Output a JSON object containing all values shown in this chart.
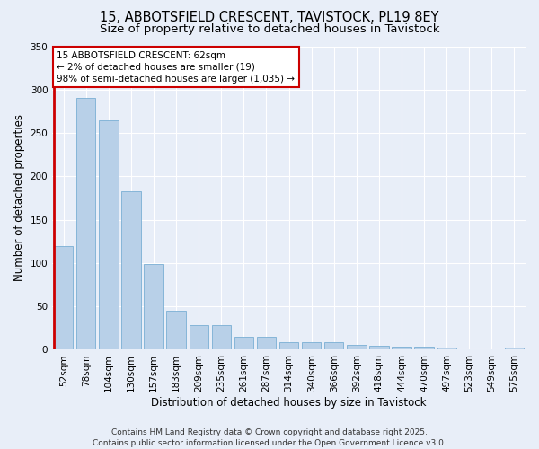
{
  "title_line1": "15, ABBOTSFIELD CRESCENT, TAVISTOCK, PL19 8EY",
  "title_line2": "Size of property relative to detached houses in Tavistock",
  "xlabel": "Distribution of detached houses by size in Tavistock",
  "ylabel": "Number of detached properties",
  "bar_color": "#b8d0e8",
  "bar_edge_color": "#7aafd4",
  "highlight_color": "#cc0000",
  "categories": [
    "52sqm",
    "78sqm",
    "104sqm",
    "130sqm",
    "157sqm",
    "183sqm",
    "209sqm",
    "235sqm",
    "261sqm",
    "287sqm",
    "314sqm",
    "340sqm",
    "366sqm",
    "392sqm",
    "418sqm",
    "444sqm",
    "470sqm",
    "497sqm",
    "523sqm",
    "549sqm",
    "575sqm"
  ],
  "values": [
    120,
    290,
    265,
    183,
    99,
    45,
    28,
    28,
    15,
    15,
    9,
    9,
    9,
    6,
    5,
    4,
    4,
    3,
    0,
    0,
    3
  ],
  "highlight_bar_index": 0,
  "ylim": [
    0,
    350
  ],
  "yticks": [
    0,
    50,
    100,
    150,
    200,
    250,
    300,
    350
  ],
  "annotation_title": "15 ABBOTSFIELD CRESCENT: 62sqm",
  "annotation_line2": "← 2% of detached houses are smaller (19)",
  "annotation_line3": "98% of semi-detached houses are larger (1,035) →",
  "annotation_box_color": "#ffffff",
  "annotation_box_edge": "#cc0000",
  "footer_line1": "Contains HM Land Registry data © Crown copyright and database right 2025.",
  "footer_line2": "Contains public sector information licensed under the Open Government Licence v3.0.",
  "background_color": "#e8eef8",
  "grid_color": "#ffffff",
  "title_fontsize": 10.5,
  "subtitle_fontsize": 9.5,
  "axis_label_fontsize": 8.5,
  "tick_fontsize": 7.5,
  "footer_fontsize": 6.5,
  "annotation_fontsize": 7.5
}
